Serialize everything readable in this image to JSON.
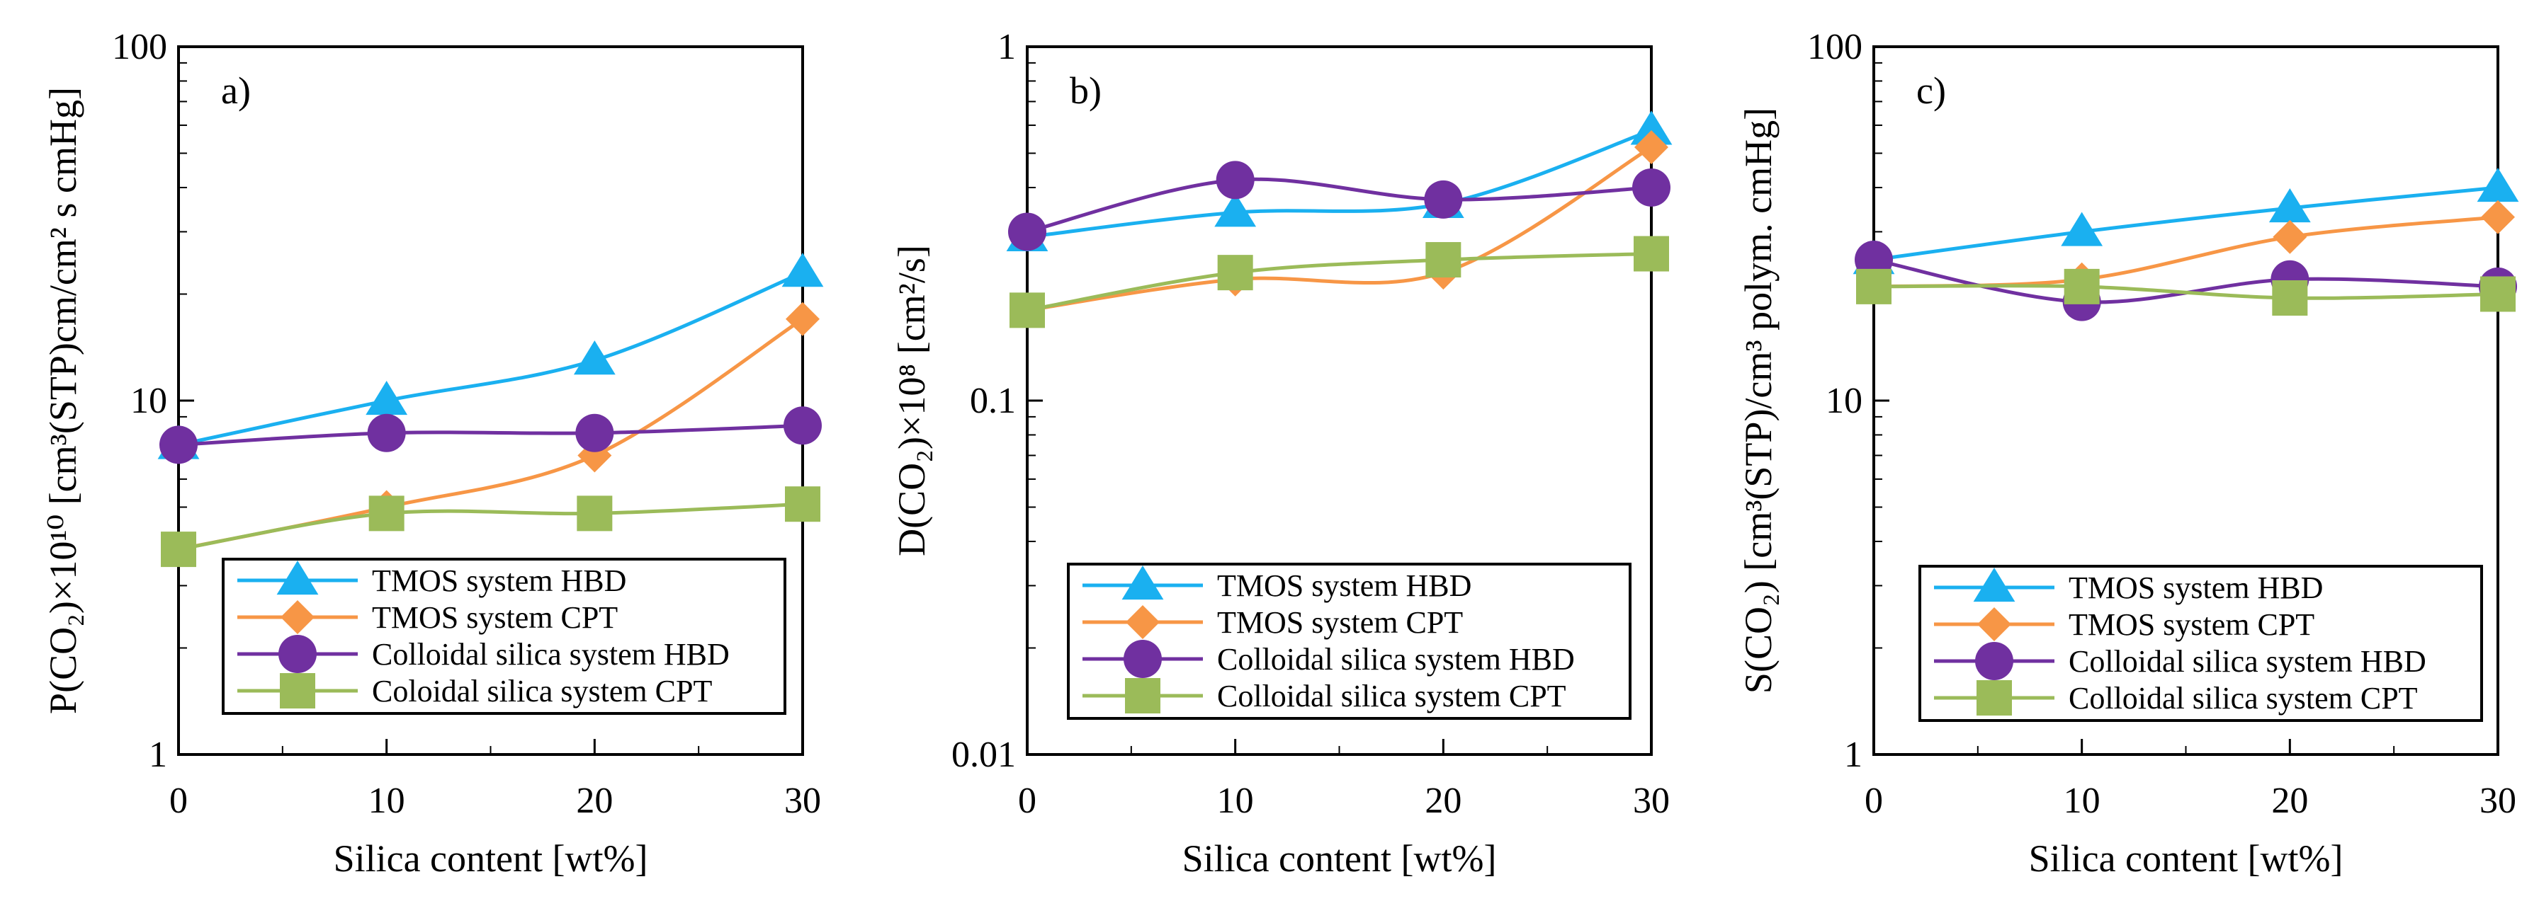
{
  "chart_data": [
    {
      "type": "line",
      "panel_label": "a)",
      "title": "",
      "xlabel": "Silica content [wt%]",
      "ylabel": "P(CO₂)×10¹⁰ [cm³(STP)cm/cm² s cmHg]",
      "yscale": "log",
      "xlim": [
        0,
        30
      ],
      "ylim": [
        1,
        100
      ],
      "x_ticks": [
        "0",
        "10",
        "20",
        "30"
      ],
      "y_ticks": [
        "1",
        "10",
        "100"
      ],
      "x": [
        0,
        10,
        20,
        30
      ],
      "series": [
        {
          "name": "TMOS system HBD",
          "color": "#1AB0F0",
          "marker": "triangle",
          "values": [
            7.5,
            10.0,
            13.0,
            23.0
          ]
        },
        {
          "name": "TMOS system CPT",
          "color": "#F79646",
          "marker": "diamond",
          "values": [
            3.8,
            5.0,
            7.0,
            17.0
          ]
        },
        {
          "name": "Colloidal silica system HBD",
          "color": "#7030A0",
          "marker": "circle",
          "values": [
            7.5,
            8.1,
            8.1,
            8.5
          ]
        },
        {
          "name": "Coloidal silica system CPT",
          "color": "#9BBB59",
          "marker": "square",
          "values": [
            3.8,
            4.8,
            4.8,
            5.1
          ]
        }
      ]
    },
    {
      "type": "line",
      "panel_label": "b)",
      "title": "",
      "xlabel": "Silica content [wt%]",
      "ylabel": "D(CO₂)×10⁸ [cm²/s]",
      "yscale": "log",
      "xlim": [
        0,
        30
      ],
      "ylim": [
        0.01,
        1
      ],
      "x_ticks": [
        "0",
        "10",
        "20",
        "30"
      ],
      "y_ticks": [
        "0.01",
        "0.1",
        "1"
      ],
      "x": [
        0,
        10,
        20,
        30
      ],
      "series": [
        {
          "name": "TMOS system HBD",
          "color": "#1AB0F0",
          "marker": "triangle",
          "values": [
            0.29,
            0.34,
            0.36,
            0.58
          ]
        },
        {
          "name": "TMOS system CPT",
          "color": "#F79646",
          "marker": "diamond",
          "values": [
            0.18,
            0.22,
            0.23,
            0.52
          ]
        },
        {
          "name": "Colloidal silica system HBD",
          "color": "#7030A0",
          "marker": "circle",
          "values": [
            0.3,
            0.42,
            0.37,
            0.4
          ]
        },
        {
          "name": "Colloidal silica system CPT",
          "color": "#9BBB59",
          "marker": "square",
          "values": [
            0.18,
            0.23,
            0.25,
            0.26
          ]
        }
      ]
    },
    {
      "type": "line",
      "panel_label": "c)",
      "title": "",
      "xlabel": "Silica content [wt%]",
      "ylabel": "S(CO₂) [cm³(STP)/cm³ polym. cmHg]",
      "yscale": "log",
      "xlim": [
        0,
        30
      ],
      "ylim": [
        1,
        100
      ],
      "x_ticks": [
        "0",
        "10",
        "20",
        "30"
      ],
      "y_ticks": [
        "1",
        "10",
        "100"
      ],
      "x": [
        0,
        10,
        20,
        30
      ],
      "series": [
        {
          "name": "TMOS system HBD",
          "color": "#1AB0F0",
          "marker": "triangle",
          "values": [
            25,
            30,
            35,
            40
          ]
        },
        {
          "name": "TMOS system CPT",
          "color": "#F79646",
          "marker": "diamond",
          "values": [
            21,
            22,
            29,
            33
          ]
        },
        {
          "name": "Colloidal silica system HBD",
          "color": "#7030A0",
          "marker": "circle",
          "values": [
            25,
            19,
            22,
            21
          ]
        },
        {
          "name": "Colloidal silica system CPT",
          "color": "#9BBB59",
          "marker": "square",
          "values": [
            21,
            21,
            19.5,
            20
          ]
        }
      ]
    }
  ]
}
